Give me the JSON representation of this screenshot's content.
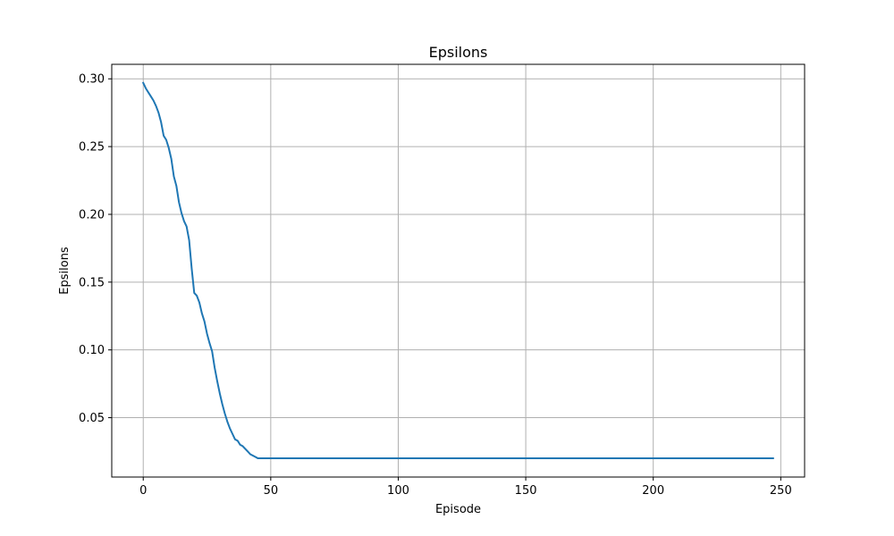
{
  "chart_data": {
    "type": "line",
    "title": "Epsilons",
    "xlabel": "Episode",
    "ylabel": "Epsilons",
    "xlim": [
      -12.35,
      259.35
    ],
    "ylim": [
      0.0062,
      0.3107
    ],
    "xticks": [
      0,
      50,
      100,
      150,
      200,
      250
    ],
    "yticks": [
      0.05,
      0.1,
      0.15,
      0.2,
      0.25,
      0.3
    ],
    "xtick_labels": [
      "0",
      "50",
      "100",
      "150",
      "200",
      "250"
    ],
    "ytick_labels": [
      "0.05",
      "0.10",
      "0.15",
      "0.20",
      "0.25",
      "0.30"
    ],
    "grid": true,
    "series": [
      {
        "color": "#1f77b4",
        "points": [
          [
            0,
            0.297
          ],
          [
            1,
            0.293
          ],
          [
            2,
            0.29
          ],
          [
            3,
            0.287
          ],
          [
            4,
            0.284
          ],
          [
            5,
            0.28
          ],
          [
            6,
            0.275
          ],
          [
            7,
            0.268
          ],
          [
            8,
            0.258
          ],
          [
            9,
            0.255
          ],
          [
            10,
            0.249
          ],
          [
            11,
            0.241
          ],
          [
            12,
            0.228
          ],
          [
            13,
            0.221
          ],
          [
            14,
            0.209
          ],
          [
            15,
            0.201
          ],
          [
            16,
            0.195
          ],
          [
            17,
            0.191
          ],
          [
            18,
            0.181
          ],
          [
            19,
            0.16
          ],
          [
            20,
            0.142
          ],
          [
            21,
            0.14
          ],
          [
            22,
            0.135
          ],
          [
            23,
            0.127
          ],
          [
            24,
            0.121
          ],
          [
            25,
            0.112
          ],
          [
            26,
            0.105
          ],
          [
            27,
            0.099
          ],
          [
            28,
            0.087
          ],
          [
            29,
            0.077
          ],
          [
            30,
            0.068
          ],
          [
            31,
            0.06
          ],
          [
            32,
            0.053
          ],
          [
            33,
            0.047
          ],
          [
            34,
            0.042
          ],
          [
            35,
            0.038
          ],
          [
            36,
            0.034
          ],
          [
            37,
            0.033
          ],
          [
            38,
            0.03
          ],
          [
            39,
            0.029
          ],
          [
            40,
            0.027
          ],
          [
            41,
            0.025
          ],
          [
            42,
            0.023
          ],
          [
            43,
            0.022
          ],
          [
            44,
            0.021
          ],
          [
            45,
            0.02
          ],
          [
            247,
            0.02
          ]
        ]
      }
    ]
  }
}
